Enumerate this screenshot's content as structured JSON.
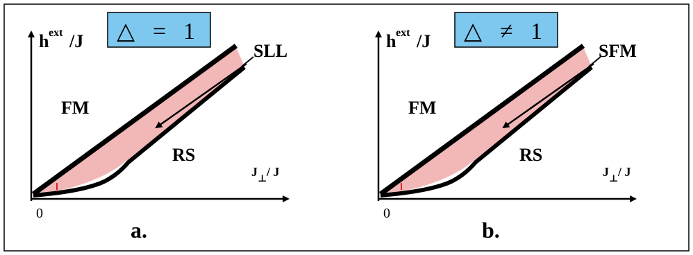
{
  "panels": [
    {
      "y_axis_label": "h",
      "y_axis_sup": "ext",
      "y_axis_tail": "/J",
      "box_symbol": "△",
      "box_relation": "=",
      "box_value": "1",
      "region_top": "FM",
      "region_bottom": "RS",
      "region_band": "SLL",
      "x_axis_label": "J",
      "x_axis_sub": "⊥",
      "x_axis_tail": "/ J",
      "origin": "0",
      "panel_label": "a."
    },
    {
      "y_axis_label": "h",
      "y_axis_sup": "ext",
      "y_axis_tail": "/J",
      "box_symbol": "△",
      "box_relation": "≠",
      "box_value": "1",
      "region_top": "FM",
      "region_bottom": "RS",
      "region_band": "SFM",
      "x_axis_label": "J",
      "x_axis_sub": "⊥",
      "x_axis_tail": "/ J",
      "origin": "0",
      "panel_label": "b."
    }
  ],
  "colors": {
    "box_fill": "#7ec8f0",
    "band_fill": "#f2b8b8",
    "line": "#000000",
    "accent_tick": "#e02020",
    "frame": "#000000"
  }
}
